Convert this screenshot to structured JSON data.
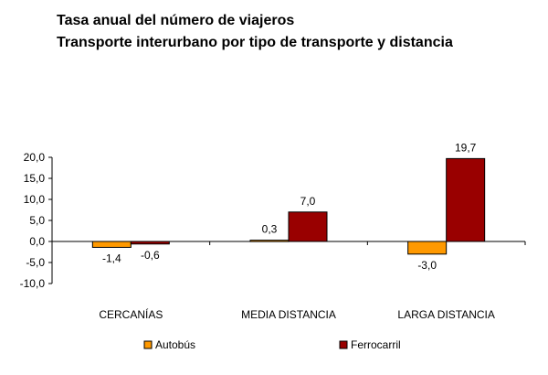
{
  "title": "Tasa anual del número de viajeros",
  "subtitle": "Transporte interurbano por tipo de transporte y distancia",
  "chart_data": {
    "type": "bar",
    "categories": [
      "CERCANÍAS",
      "MEDIA DISTANCIA",
      "LARGA DISTANCIA"
    ],
    "series": [
      {
        "name": "Autobús",
        "values": [
          -1.4,
          0.3,
          -3.0
        ],
        "labels": [
          "-1,4",
          "0,3",
          "-3,0"
        ],
        "color": "#FF9900"
      },
      {
        "name": "Ferrocarril",
        "values": [
          -0.6,
          7.0,
          19.7
        ],
        "labels": [
          "-0,6",
          "7,0",
          "19,7"
        ],
        "color": "#990000"
      }
    ],
    "ylim": [
      -10,
      20
    ],
    "yticks": [
      20,
      15,
      10,
      5,
      0,
      -5,
      -10
    ],
    "ytick_labels": [
      "20,0",
      "15,0",
      "10,0",
      "5,0",
      "0,0",
      "-5,0",
      "-10,0"
    ],
    "grid": false,
    "legend": "bottom"
  }
}
